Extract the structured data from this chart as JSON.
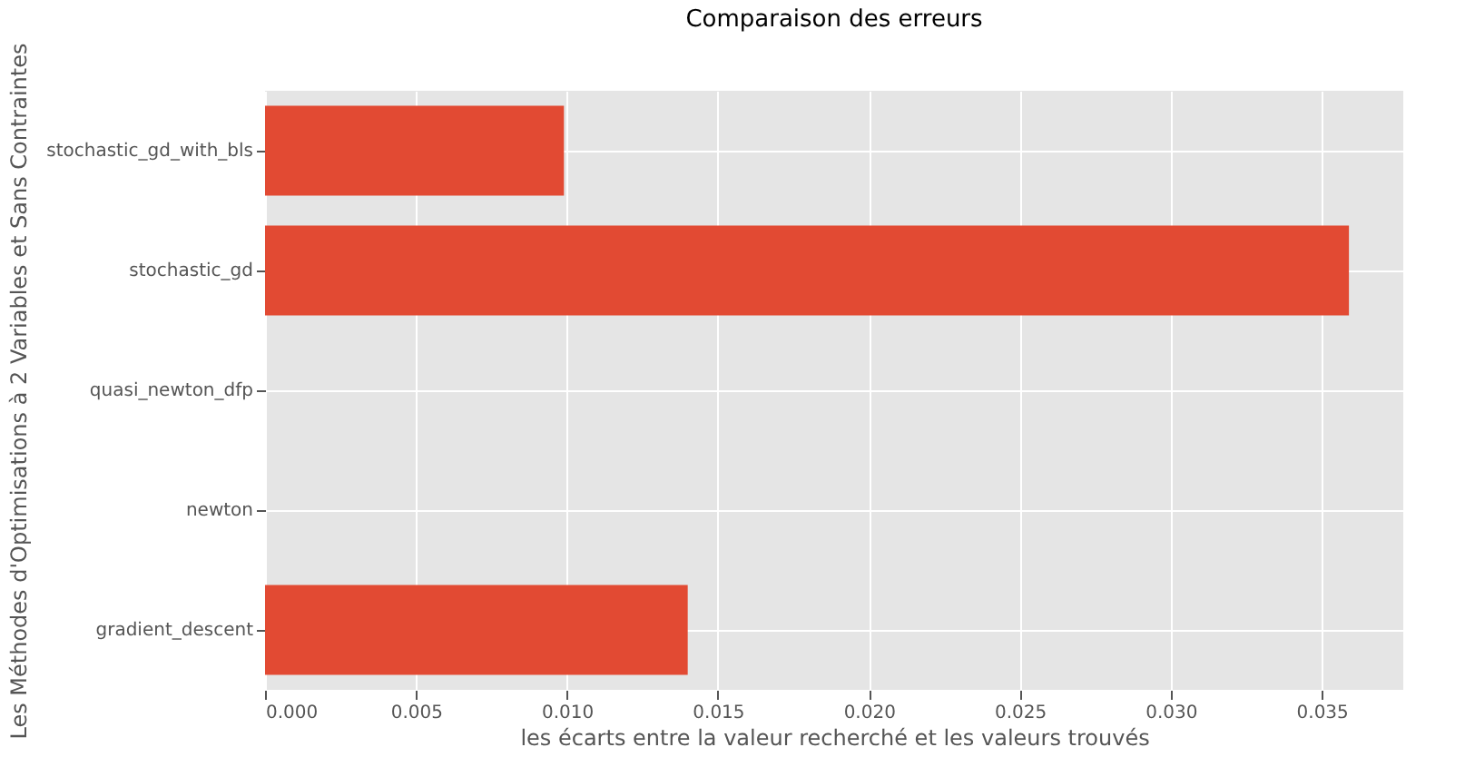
{
  "chart_data": {
    "type": "bar",
    "orientation": "horizontal",
    "title": "Comparaison des erreurs",
    "xlabel": "les écarts entre la valeur recherché et les valeurs trouvés",
    "ylabel": "Les Méthodes d'Optimisations à 2 Variables et Sans Contraintes",
    "categories": [
      "stochastic_gd_with_bls",
      "stochastic_gd",
      "quasi_newton_dfp",
      "newton",
      "gradient_descent"
    ],
    "values": [
      0.0099,
      0.0359,
      0,
      0,
      0.014
    ],
    "color": "#e24a33",
    "xlim": [
      0,
      0.0377
    ],
    "xticks": [
      {
        "value": 0,
        "label": "0.000"
      },
      {
        "value": 0.005,
        "label": "0.005"
      },
      {
        "value": 0.01,
        "label": "0.010"
      },
      {
        "value": 0.015,
        "label": "0.015"
      },
      {
        "value": 0.02,
        "label": "0.020"
      },
      {
        "value": 0.025,
        "label": "0.025"
      },
      {
        "value": 0.03,
        "label": "0.030"
      },
      {
        "value": 0.035,
        "label": "0.035"
      }
    ],
    "grid": true
  }
}
